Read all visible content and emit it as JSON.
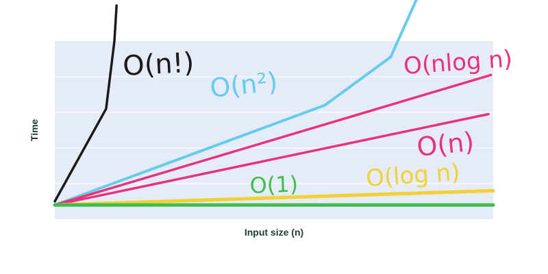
{
  "chart_data": {
    "type": "line",
    "title": "",
    "xlabel": "Input size (n)",
    "ylabel": "Time",
    "grid": true,
    "legend": "none",
    "xlim": [
      0,
      100
    ],
    "ylim": [
      0,
      100
    ],
    "series": [
      {
        "name": "O(n!)",
        "color": "#1a1a1a",
        "x": [
          0,
          11.7,
          13.6,
          14.1
        ],
        "y": [
          10,
          62,
          100,
          120
        ]
      },
      {
        "name": "O(n²)",
        "color": "#66ccee",
        "x": [
          0,
          61.6,
          76.6,
          85.9
        ],
        "y": [
          8,
          64,
          91,
          142
        ]
      },
      {
        "name": "O(nlog n)",
        "color": "#e8327a",
        "x": [
          0,
          99.5
        ],
        "y": [
          8,
          81
        ]
      },
      {
        "name": "O(n)",
        "color": "#e8327a",
        "x": [
          0,
          98.9
        ],
        "y": [
          8,
          59
        ]
      },
      {
        "name": "O(log n)",
        "color": "#f2d036",
        "x": [
          0,
          100
        ],
        "y": [
          8,
          16
        ]
      },
      {
        "name": "O(1)",
        "color": "#3dbe4e",
        "x": [
          0,
          100
        ],
        "y": [
          8,
          8
        ]
      }
    ]
  }
}
